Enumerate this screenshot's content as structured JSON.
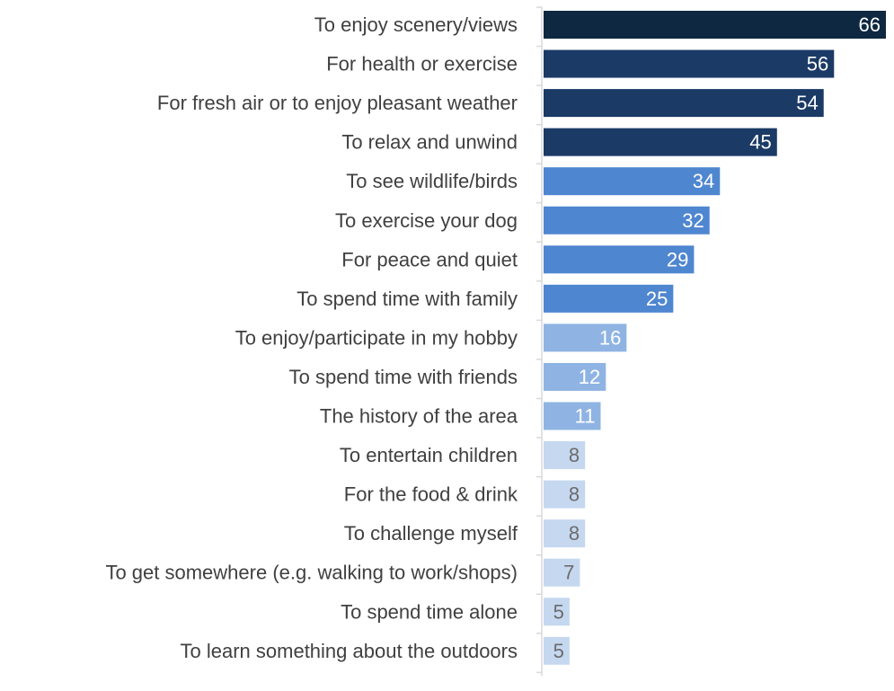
{
  "chart_data": {
    "type": "bar",
    "orientation": "horizontal",
    "categories": [
      "To enjoy scenery/views",
      "For health or exercise",
      "For fresh air or to enjoy pleasant weather",
      "To relax and unwind",
      "To see wildlife/birds",
      "To exercise your dog",
      "For peace and quiet",
      "To spend time with family",
      "To enjoy/participate in my hobby",
      "To spend time with friends",
      "The history of the area",
      "To entertain children",
      "For the food & drink",
      "To challenge myself",
      "To get somewhere (e.g. walking to work/shops)",
      "To spend time alone",
      "To learn something about the outdoors"
    ],
    "values": [
      66,
      56,
      54,
      45,
      34,
      32,
      29,
      25,
      16,
      12,
      11,
      8,
      8,
      8,
      7,
      5,
      5
    ],
    "value_labels": [
      "66",
      "56",
      "54",
      "45",
      "34",
      "32",
      "29",
      "25",
      "16",
      "12",
      "11",
      "8",
      "8",
      "8",
      "7",
      "5",
      "5"
    ],
    "bar_colors": [
      "#0e2841",
      "#1b3a66",
      "#1b3a66",
      "#1b3a66",
      "#4f86d0",
      "#4f86d0",
      "#4f86d0",
      "#4f86d0",
      "#8fb4e3",
      "#8fb4e3",
      "#8fb4e3",
      "#c5d8f0",
      "#c5d8f0",
      "#c5d8f0",
      "#c5d8f0",
      "#c5d8f0",
      "#c5d8f0"
    ],
    "label_colors": [
      "#ffffff",
      "#ffffff",
      "#ffffff",
      "#ffffff",
      "#ffffff",
      "#ffffff",
      "#ffffff",
      "#ffffff",
      "#ffffff",
      "#ffffff",
      "#ffffff",
      "#6b6b6b",
      "#6b6b6b",
      "#6b6b6b",
      "#6b6b6b",
      "#6b6b6b",
      "#6b6b6b"
    ],
    "xlim": [
      0,
      66
    ],
    "title": "",
    "xlabel": "",
    "ylabel": "",
    "grid": false,
    "legend": false
  }
}
